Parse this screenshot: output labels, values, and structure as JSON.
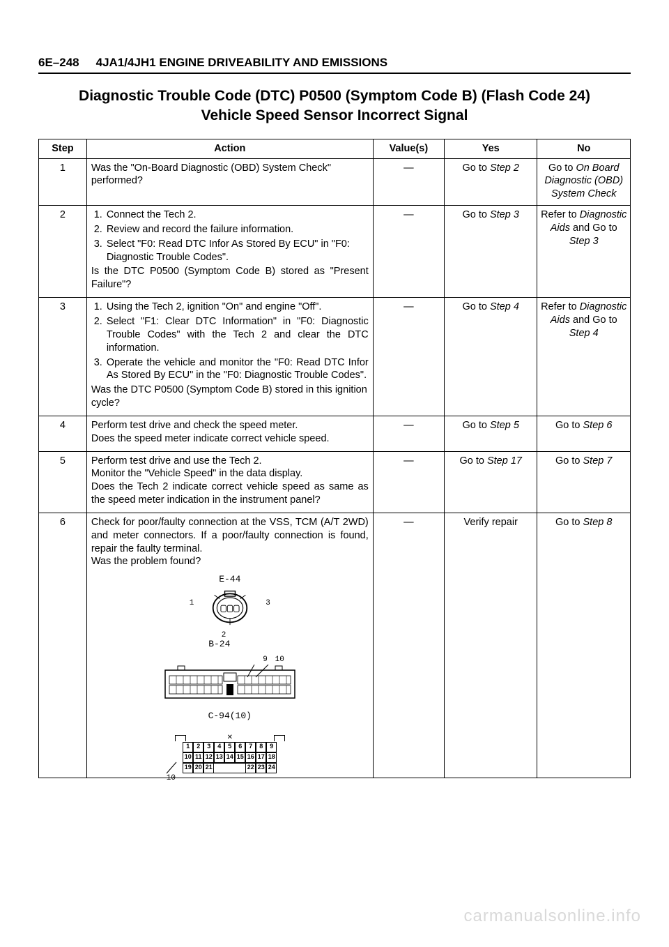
{
  "page": {
    "number": "6E–248",
    "header_title": "4JA1/4JH1 ENGINE DRIVEABILITY AND EMISSIONS",
    "main_title_line1": "Diagnostic Trouble Code (DTC) P0500 (Symptom Code B) (Flash Code 24)",
    "main_title_line2": "Vehicle Speed Sensor Incorrect Signal"
  },
  "table": {
    "headers": {
      "step": "Step",
      "action": "Action",
      "values": "Value(s)",
      "yes": "Yes",
      "no": "No"
    },
    "rows": [
      {
        "step": "1",
        "action_html": "Was the \"On-Board Diagnostic (OBD) System Check\" performed?",
        "values": "—",
        "yes_pre": "Go to ",
        "yes_italic": "Step 2",
        "no_pre": "Go to ",
        "no_italic": "On Board Diagnostic (OBD) System Check"
      },
      {
        "step": "2",
        "list": [
          "Connect the Tech 2.",
          "Review and record the failure information.",
          "Select \"F0: Read DTC Infor As Stored By ECU\" in \"F0: Diagnostic Trouble Codes\"."
        ],
        "after_list": "Is the DTC P0500 (Symptom Code B) stored as \"Present Failure\"?",
        "values": "—",
        "yes_pre": "Go to ",
        "yes_italic": "Step 3",
        "no_pre": "Refer to ",
        "no_italic1": "Diagnostic Aids",
        "no_mid": " and Go to ",
        "no_italic2": "Step 3"
      },
      {
        "step": "3",
        "list": [
          "Using the Tech 2, ignition \"On\" and engine \"Off\".",
          "Select \"F1: Clear DTC Information\" in \"F0: Diagnostic Trouble Codes\" with the Tech 2 and clear the DTC information.",
          "Operate the vehicle and monitor the \"F0: Read DTC Infor As Stored By ECU\" in the \"F0: Diagnostic Trouble Codes\"."
        ],
        "after_list": "Was the DTC P0500 (Symptom Code B) stored in this ignition cycle?",
        "values": "—",
        "yes_pre": "Go to ",
        "yes_italic": "Step 4",
        "no_pre": "Refer to ",
        "no_italic1": "Diagnostic Aids",
        "no_mid": " and Go to ",
        "no_italic2": "Step 4"
      },
      {
        "step": "4",
        "action_html": "Perform test drive and check the speed meter.<br>Does the speed meter indicate correct vehicle speed.",
        "values": "—",
        "yes_pre": "Go to ",
        "yes_italic": "Step 5",
        "no_pre": "Go to ",
        "no_italic": "Step 6"
      },
      {
        "step": "5",
        "action_html": "Perform test drive and use the Tech 2.<br>Monitor the \"Vehicle Speed\" in the data display.<br>Does the Tech 2 indicate correct vehicle speed as same as the speed meter indication in the instrument panel?",
        "values": "—",
        "yes_pre": "Go to ",
        "yes_italic": "Step 17",
        "no_pre": "Go to ",
        "no_italic": "Step 7"
      },
      {
        "step": "6",
        "action_html": "Check for poor/faulty connection at the VSS, TCM (A/T 2WD) and meter connectors. If a poor/faulty connection is found, repair the faulty terminal.<br>Was the problem found?",
        "values": "—",
        "yes_plain": "Verify repair",
        "no_pre": "Go to ",
        "no_italic": "Step 8",
        "diagram": true
      }
    ]
  },
  "connectors": {
    "e44": {
      "label": "E-44",
      "pins": [
        "1",
        "2",
        "3"
      ]
    },
    "b24": {
      "label": "B-24",
      "callouts": [
        "9",
        "10"
      ]
    },
    "c94": {
      "label": "C-94(10)",
      "callout": "10",
      "row1": [
        "1",
        "2",
        "3",
        "4",
        "5",
        "6",
        "7",
        "8",
        "9"
      ],
      "row2": [
        "10",
        "11",
        "12",
        "13",
        "14",
        "15",
        "16",
        "17",
        "18"
      ],
      "row3": [
        "19",
        "20",
        "21",
        "22",
        "23",
        "24"
      ]
    }
  },
  "watermark": "carmanualsonline.info"
}
